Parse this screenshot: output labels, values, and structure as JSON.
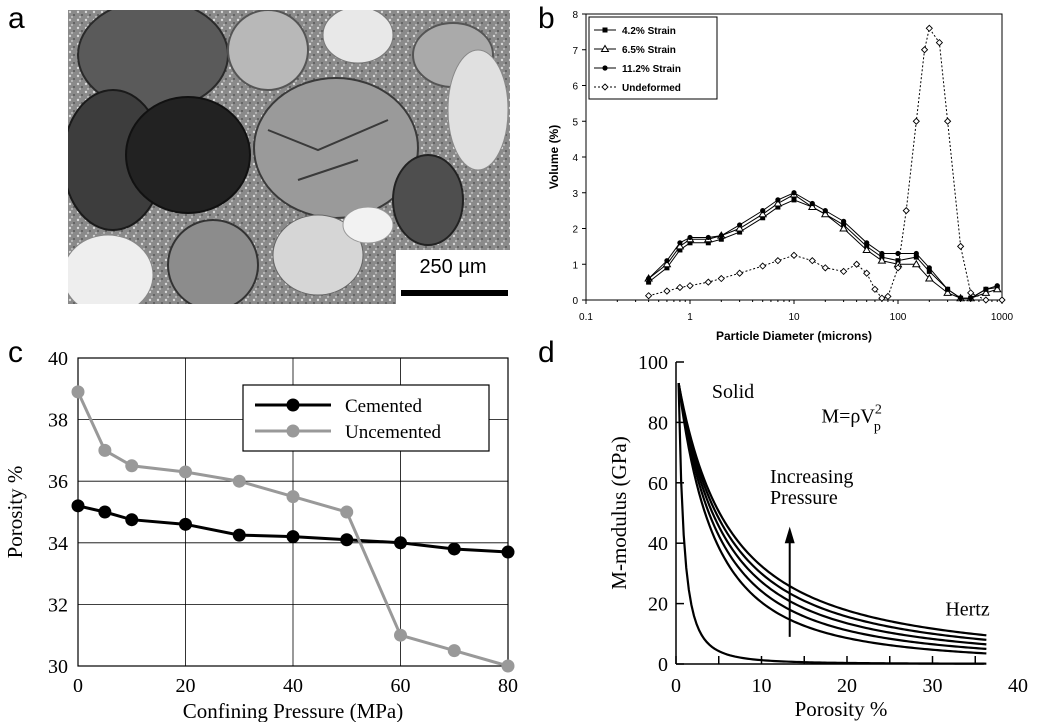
{
  "panels": {
    "a": {
      "letter": "a",
      "scale_bar_label": "250 µm"
    },
    "b": {
      "letter": "b"
    },
    "c": {
      "letter": "c"
    },
    "d": {
      "letter": "d",
      "annotations": {
        "solid": "Solid",
        "formula_main": "M=ρV",
        "formula_sub": "p",
        "formula_sup": "2",
        "increasing_line1": "Increasing",
        "increasing_line2": "Pressure",
        "hertz": "Hertz"
      }
    }
  },
  "chart_data": [
    {
      "id": "b",
      "type": "line",
      "xscale": "log",
      "xlabel": "Particle Diameter (microns)",
      "ylabel": "Volume (%)",
      "xlim": [
        0.1,
        1000
      ],
      "ylim": [
        0,
        8
      ],
      "xticks": [
        "0.1",
        "1",
        "10",
        "100",
        "1000"
      ],
      "yticks": [
        "0",
        "1",
        "2",
        "3",
        "4",
        "5",
        "6",
        "7",
        "8"
      ],
      "legend_position": "top-left",
      "grid": false,
      "series": [
        {
          "name": "4.2% Strain",
          "marker": "square-filled",
          "color": "#000000",
          "x": [
            0.4,
            0.6,
            0.8,
            1,
            1.5,
            2,
            3,
            5,
            7,
            10,
            15,
            20,
            30,
            50,
            70,
            100,
            150,
            200,
            300,
            400,
            500,
            700,
            900
          ],
          "y": [
            0.5,
            0.9,
            1.4,
            1.6,
            1.6,
            1.7,
            1.9,
            2.3,
            2.6,
            2.8,
            2.6,
            2.4,
            2.1,
            1.5,
            1.2,
            1.1,
            1.2,
            0.8,
            0.3,
            0.05,
            0.05,
            0.3,
            0.35
          ]
        },
        {
          "name": "6.5% Strain",
          "marker": "triangle-open",
          "color": "#000000",
          "x": [
            0.4,
            0.6,
            0.8,
            1,
            1.5,
            2,
            3,
            5,
            7,
            10,
            15,
            20,
            30,
            50,
            70,
            100,
            150,
            200,
            300,
            400,
            500,
            700,
            900
          ],
          "y": [
            0.6,
            1.0,
            1.5,
            1.7,
            1.7,
            1.8,
            2.0,
            2.4,
            2.7,
            2.95,
            2.6,
            2.4,
            2.0,
            1.4,
            1.1,
            1.0,
            1.0,
            0.6,
            0.2,
            0.05,
            0.05,
            0.2,
            0.3
          ]
        },
        {
          "name": "11.2% Strain",
          "marker": "circle-filled",
          "color": "#000000",
          "x": [
            0.4,
            0.6,
            0.8,
            1,
            1.5,
            2,
            3,
            5,
            7,
            10,
            15,
            20,
            30,
            50,
            70,
            100,
            150,
            200,
            300,
            400,
            500,
            700,
            900
          ],
          "y": [
            0.6,
            1.1,
            1.6,
            1.75,
            1.75,
            1.8,
            2.1,
            2.5,
            2.8,
            3.0,
            2.7,
            2.5,
            2.2,
            1.6,
            1.3,
            1.3,
            1.3,
            0.9,
            0.3,
            0.05,
            0.05,
            0.3,
            0.4
          ]
        },
        {
          "name": "Undeformed",
          "marker": "diamond-open",
          "color": "#000000",
          "dash": true,
          "x": [
            0.4,
            0.6,
            0.8,
            1,
            1.5,
            2,
            3,
            5,
            7,
            10,
            15,
            20,
            30,
            40,
            50,
            60,
            70,
            80,
            100,
            120,
            150,
            180,
            200,
            250,
            300,
            400,
            500,
            700,
            1000
          ],
          "y": [
            0.12,
            0.25,
            0.35,
            0.4,
            0.5,
            0.6,
            0.75,
            0.95,
            1.1,
            1.25,
            1.1,
            0.9,
            0.8,
            1.0,
            0.75,
            0.3,
            0.05,
            0.1,
            0.9,
            2.5,
            5.0,
            7.0,
            7.6,
            7.2,
            5.0,
            1.5,
            0.2,
            0.0,
            0.0
          ]
        }
      ]
    },
    {
      "id": "c",
      "type": "line",
      "xlabel": "Confining Pressure (MPa)",
      "ylabel": "Porosity %",
      "xlim": [
        0,
        80
      ],
      "ylim": [
        30,
        40
      ],
      "xticks": [
        "0",
        "20",
        "40",
        "60",
        "80"
      ],
      "yticks": [
        "30",
        "32",
        "34",
        "36",
        "38",
        "40"
      ],
      "grid": true,
      "legend_position": "top-right",
      "series": [
        {
          "name": "Cemented",
          "color": "#000000",
          "x": [
            0,
            5,
            10,
            20,
            30,
            40,
            50,
            60,
            70,
            80
          ],
          "y": [
            35.2,
            35.0,
            34.75,
            34.6,
            34.25,
            34.2,
            34.1,
            34.0,
            33.8,
            33.7
          ]
        },
        {
          "name": "Uncemented",
          "color": "#999999",
          "x": [
            0,
            5,
            10,
            20,
            30,
            40,
            50,
            60,
            70,
            80
          ],
          "y": [
            38.9,
            37.0,
            36.5,
            36.3,
            36.0,
            35.5,
            35.0,
            31.0,
            30.5,
            30.0
          ]
        }
      ]
    },
    {
      "id": "d",
      "type": "line",
      "xlabel": "Porosity %",
      "ylabel": "M-modulus (GPa)",
      "xlim": [
        0,
        40
      ],
      "ylim": [
        0,
        100
      ],
      "xticks": [
        "0",
        "10",
        "20",
        "30",
        "40"
      ],
      "yticks": [
        "0",
        "20",
        "40",
        "60",
        "80",
        "100"
      ],
      "grid": false,
      "curve_end_porosity": 36,
      "solid_modulus": 93,
      "series": [
        {
          "end_value": 9.5
        },
        {
          "end_value": 8.0
        },
        {
          "end_value": 6.5
        },
        {
          "end_value": 5.0
        },
        {
          "end_value": 3.5
        },
        {
          "end_value": 0.5
        }
      ]
    }
  ]
}
